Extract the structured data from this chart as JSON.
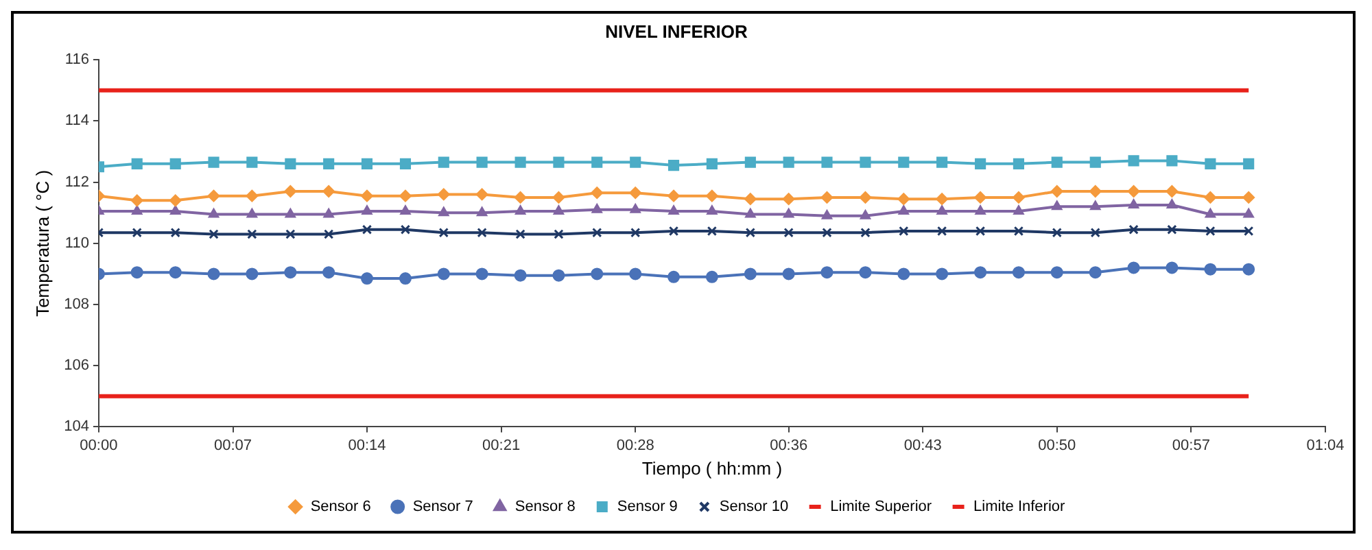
{
  "chart_data": {
    "type": "line",
    "title": "NIVEL INFERIOR",
    "xlabel": "Tiempo ( hh:mm )",
    "ylabel": "Temperatura ( °C )",
    "x": [
      0,
      0.0333,
      0.0667,
      0.1,
      0.1333,
      0.1667,
      0.2,
      0.2333,
      0.2667,
      0.3,
      0.3333,
      0.3667,
      0.4,
      0.4333,
      0.4667,
      0.5,
      0.5333,
      0.5667,
      0.6,
      0.6333,
      0.6667,
      0.7,
      0.7333,
      0.7667,
      0.8,
      0.8333,
      0.8667,
      0.9,
      0.9333,
      0.9667,
      1
    ],
    "series": [
      {
        "name": "Sensor 6",
        "color": "#f59a3c",
        "marker": "diamond",
        "values": [
          111.55,
          111.4,
          111.4,
          111.55,
          111.55,
          111.7,
          111.7,
          111.55,
          111.55,
          111.6,
          111.6,
          111.5,
          111.5,
          111.65,
          111.65,
          111.55,
          111.55,
          111.45,
          111.45,
          111.5,
          111.5,
          111.45,
          111.45,
          111.5,
          111.5,
          111.7,
          111.7,
          111.7,
          111.7,
          111.5,
          111.5
        ]
      },
      {
        "name": "Sensor 7",
        "color": "#4a72b8",
        "marker": "circle",
        "values": [
          109.0,
          109.05,
          109.05,
          109.0,
          109.0,
          109.05,
          109.05,
          108.85,
          108.85,
          109.0,
          109.0,
          108.95,
          108.95,
          109.0,
          109.0,
          108.9,
          108.9,
          109.0,
          109.0,
          109.05,
          109.05,
          109.0,
          109.0,
          109.05,
          109.05,
          109.05,
          109.05,
          109.2,
          109.2,
          109.15,
          109.15
        ]
      },
      {
        "name": "Sensor 8",
        "color": "#8064a2",
        "marker": "triangle",
        "values": [
          111.05,
          111.05,
          111.05,
          110.95,
          110.95,
          110.95,
          110.95,
          111.05,
          111.05,
          111.0,
          111.0,
          111.05,
          111.05,
          111.1,
          111.1,
          111.05,
          111.05,
          110.95,
          110.95,
          110.9,
          110.9,
          111.05,
          111.05,
          111.05,
          111.05,
          111.2,
          111.2,
          111.25,
          111.25,
          110.95,
          110.95
        ]
      },
      {
        "name": "Sensor 9",
        "color": "#4bacc6",
        "marker": "square",
        "values": [
          112.5,
          112.6,
          112.6,
          112.65,
          112.65,
          112.6,
          112.6,
          112.6,
          112.6,
          112.65,
          112.65,
          112.65,
          112.65,
          112.65,
          112.65,
          112.55,
          112.6,
          112.65,
          112.65,
          112.65,
          112.65,
          112.65,
          112.65,
          112.6,
          112.6,
          112.65,
          112.65,
          112.7,
          112.7,
          112.6,
          112.6
        ]
      },
      {
        "name": "Sensor 10",
        "color": "#1f3864",
        "marker": "cross",
        "values": [
          110.35,
          110.35,
          110.35,
          110.3,
          110.3,
          110.3,
          110.3,
          110.45,
          110.45,
          110.35,
          110.35,
          110.3,
          110.3,
          110.35,
          110.35,
          110.4,
          110.4,
          110.35,
          110.35,
          110.35,
          110.35,
          110.4,
          110.4,
          110.4,
          110.4,
          110.35,
          110.35,
          110.45,
          110.45,
          110.4,
          110.4
        ]
      },
      {
        "name": "Limite Superior",
        "color": "#e8221b",
        "marker": "none",
        "values": [
          115,
          115,
          115,
          115,
          115,
          115,
          115,
          115,
          115,
          115,
          115,
          115,
          115,
          115,
          115,
          115,
          115,
          115,
          115,
          115,
          115,
          115,
          115,
          115,
          115,
          115,
          115,
          115,
          115,
          115,
          115
        ]
      },
      {
        "name": "Limite Inferior",
        "color": "#e8221b",
        "marker": "none",
        "values": [
          105,
          105,
          105,
          105,
          105,
          105,
          105,
          105,
          105,
          105,
          105,
          105,
          105,
          105,
          105,
          105,
          105,
          105,
          105,
          105,
          105,
          105,
          105,
          105,
          105,
          105,
          105,
          105,
          105,
          105,
          105
        ]
      }
    ],
    "xlim": [
      0,
      1.0667
    ],
    "xticks": [
      {
        "value": 0,
        "label": "00:00"
      },
      {
        "value": 0.1167,
        "label": "00:07"
      },
      {
        "value": 0.2333,
        "label": "00:14"
      },
      {
        "value": 0.35,
        "label": "00:21"
      },
      {
        "value": 0.4667,
        "label": "00:28"
      },
      {
        "value": 0.6,
        "label": "00:36"
      },
      {
        "value": 0.7167,
        "label": "00:43"
      },
      {
        "value": 0.8333,
        "label": "00:50"
      },
      {
        "value": 0.95,
        "label": "00:57"
      },
      {
        "value": 1.0667,
        "label": "01:04"
      }
    ],
    "ylim": [
      104,
      116
    ],
    "yticks": [
      104,
      106,
      108,
      110,
      112,
      114,
      116
    ],
    "grid": false,
    "legend": "bottom",
    "line_style": "solid"
  }
}
